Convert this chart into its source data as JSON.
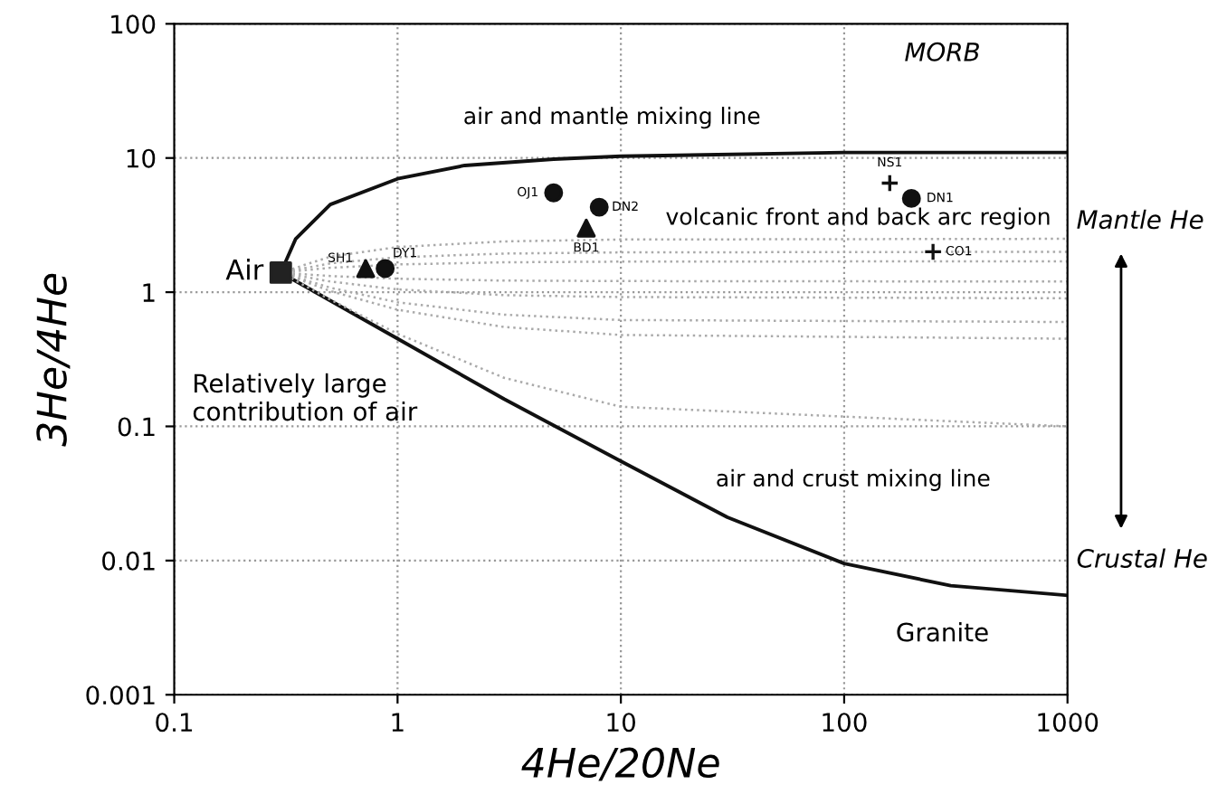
{
  "chart_data": {
    "type": "scatter",
    "xlabel": "4He/20Ne",
    "ylabel": "3He/4He",
    "log": "xy",
    "xlim": [
      0.1,
      1000
    ],
    "ylim": [
      0.001,
      100
    ],
    "xticks": [
      0.1,
      1,
      10,
      100,
      1000
    ],
    "yticks": [
      0.001,
      0.01,
      0.1,
      1,
      10,
      100
    ],
    "grid": true,
    "legend": false,
    "series": [
      {
        "type": "line",
        "color": "#111111",
        "line_style": "solid",
        "x": [
          0.3,
          0.35,
          0.5,
          1,
          2,
          5,
          10,
          100,
          1000
        ],
        "values": [
          1.4,
          2.5,
          4.5,
          7,
          8.8,
          9.8,
          10.3,
          11,
          11
        ]
      },
      {
        "type": "line",
        "color": "#111111",
        "line_style": "solid",
        "x": [
          0.3,
          1,
          3,
          10,
          30,
          100,
          300,
          1000
        ],
        "values": [
          1.4,
          0.45,
          0.16,
          0.055,
          0.021,
          0.0095,
          0.0065,
          0.0055
        ]
      },
      {
        "type": "line",
        "color": "#aaaaaa",
        "line_style": "dotted",
        "x": [
          0.3,
          0.5,
          1,
          3,
          10,
          1000
        ],
        "values": [
          1.4,
          1.84,
          2.17,
          2.39,
          2.47,
          2.5
        ]
      },
      {
        "type": "line",
        "color": "#aaaaaa",
        "line_style": "dotted",
        "x": [
          0.3,
          0.5,
          1,
          3,
          10,
          1000
        ],
        "values": [
          1.4,
          1.64,
          1.82,
          1.94,
          1.98,
          2
        ]
      },
      {
        "type": "line",
        "color": "#aaaaaa",
        "line_style": "dotted",
        "x": [
          0.3,
          0.5,
          1,
          3,
          10,
          1000
        ],
        "values": [
          1.4,
          1.52,
          1.61,
          1.67,
          1.69,
          1.7
        ]
      },
      {
        "type": "line",
        "color": "#aaaaaa",
        "line_style": "dotted",
        "x": [
          0.3,
          0.5,
          1,
          3,
          10,
          1000
        ],
        "values": [
          1.4,
          1.32,
          1.26,
          1.22,
          1.21,
          1.2
        ]
      },
      {
        "type": "line",
        "color": "#aaaaaa",
        "line_style": "dotted",
        "x": [
          0.3,
          0.5,
          1,
          3,
          10,
          1000
        ],
        "values": [
          1.4,
          1.2,
          1.05,
          0.95,
          0.92,
          0.9
        ]
      },
      {
        "type": "line",
        "color": "#aaaaaa",
        "line_style": "dotted",
        "x": [
          0.3,
          0.5,
          1,
          3,
          10,
          1000
        ],
        "values": [
          1.4,
          1.08,
          0.84,
          0.68,
          0.62,
          0.6
        ]
      },
      {
        "type": "line",
        "color": "#aaaaaa",
        "line_style": "dotted",
        "x": [
          0.3,
          0.5,
          1,
          3,
          10,
          1000
        ],
        "values": [
          1.4,
          1.02,
          0.74,
          0.55,
          0.48,
          0.45
        ]
      },
      {
        "type": "line",
        "color": "#aaaaaa",
        "line_style": "dotted",
        "x": [
          0.3,
          0.5,
          1,
          3,
          10,
          1000
        ],
        "values": [
          1.4,
          0.88,
          0.49,
          0.23,
          0.14,
          0.1
        ]
      },
      {
        "type": "scatter",
        "marker": "square",
        "color": "#222222",
        "x": [
          0.3
        ],
        "values": [
          1.4
        ]
      },
      {
        "type": "scatter",
        "marker": "circle",
        "color": "#111111",
        "x": [
          0.88,
          5,
          8,
          200
        ],
        "values": [
          1.5,
          5.5,
          4.3,
          5
        ]
      },
      {
        "type": "scatter",
        "marker": "triangle",
        "color": "#111111",
        "x": [
          0.72,
          7
        ],
        "values": [
          1.5,
          3
        ]
      },
      {
        "type": "scatter",
        "marker": "cross",
        "color": "#111111",
        "x": [
          160,
          250
        ],
        "values": [
          6.5,
          2
        ]
      }
    ],
    "annotations": [
      "Air",
      "air and mantle mixing line",
      "air and crust mixing line",
      "volcanic front and back arc region",
      "Relatively large contribution of air",
      "MORB",
      "Granite",
      {
        "text": "OJ1",
        "x": 5,
        "y": 5.5
      },
      {
        "text": "DN2",
        "x": 8,
        "y": 4.3
      },
      {
        "text": "BD1",
        "x": 7,
        "y": 3
      },
      {
        "text": "DY1",
        "x": 0.88,
        "y": 1.5
      },
      {
        "text": "SH1",
        "x": 0.72,
        "y": 1.5
      },
      {
        "text": "NS1",
        "x": 160,
        "y": 6.5
      },
      {
        "text": "DN1",
        "x": 200,
        "y": 5
      },
      {
        "text": "CO1",
        "x": 250,
        "y": 2
      },
      "Mantle He",
      "Crustal He"
    ]
  }
}
